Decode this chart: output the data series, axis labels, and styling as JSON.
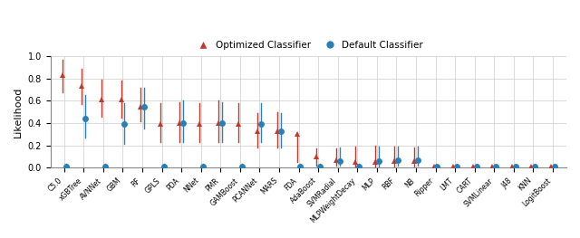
{
  "classifiers": [
    "C5.0",
    "xGBTree",
    "AVNNet",
    "GBM",
    "RF",
    "GPLS",
    "PDA",
    "NNet",
    "PMR",
    "GAMBoost",
    "PCANNet",
    "MARS",
    "FDA",
    "AdaBoost",
    "SVMRadial",
    "MLPWeightDecay",
    "MLP",
    "RBF",
    "NB",
    "Ripper",
    "LMT",
    "CART",
    "SVMLinear",
    "J48",
    "KNN",
    "LogitBoost"
  ],
  "red_mean": [
    0.83,
    0.73,
    0.61,
    0.61,
    0.55,
    0.39,
    0.4,
    0.39,
    0.4,
    0.39,
    0.33,
    0.33,
    0.3,
    0.1,
    0.07,
    0.05,
    0.05,
    0.06,
    0.06,
    0.01,
    0.01,
    0.01,
    0.01,
    0.01,
    0.01,
    0.01
  ],
  "red_low": [
    0.68,
    0.57,
    0.46,
    0.45,
    0.42,
    0.23,
    0.23,
    0.23,
    0.23,
    0.23,
    0.18,
    0.18,
    0.05,
    0.02,
    0.02,
    0.01,
    0.01,
    0.01,
    0.01,
    0.0,
    0.0,
    0.0,
    0.0,
    0.0,
    0.0,
    0.0
  ],
  "red_high": [
    0.97,
    0.89,
    0.79,
    0.78,
    0.72,
    0.58,
    0.59,
    0.58,
    0.6,
    0.58,
    0.49,
    0.5,
    0.28,
    0.17,
    0.17,
    0.19,
    0.2,
    0.19,
    0.18,
    0.02,
    0.02,
    0.02,
    0.02,
    0.02,
    0.02,
    0.02
  ],
  "blue_mean": [
    0.01,
    0.44,
    0.01,
    0.39,
    0.55,
    0.01,
    0.4,
    0.01,
    0.4,
    0.01,
    0.39,
    0.33,
    0.01,
    0.01,
    0.06,
    0.01,
    0.06,
    0.07,
    0.07,
    0.01,
    0.01,
    0.01,
    0.01,
    0.01,
    0.01,
    0.01
  ],
  "blue_low": [
    0.0,
    0.27,
    0.0,
    0.21,
    0.35,
    0.0,
    0.23,
    0.0,
    0.23,
    0.0,
    0.23,
    0.18,
    0.0,
    0.0,
    0.02,
    0.0,
    0.01,
    0.02,
    0.02,
    0.0,
    0.0,
    0.0,
    0.0,
    0.0,
    0.0,
    0.0
  ],
  "blue_high": [
    0.03,
    0.65,
    0.03,
    0.58,
    0.72,
    0.03,
    0.6,
    0.03,
    0.59,
    0.03,
    0.58,
    0.49,
    0.03,
    0.03,
    0.18,
    0.03,
    0.19,
    0.19,
    0.19,
    0.02,
    0.02,
    0.02,
    0.02,
    0.02,
    0.02,
    0.02
  ],
  "red_color": "#C0392B",
  "blue_color": "#2980B9",
  "ylabel": "Likelihood",
  "ylim": [
    0.0,
    1.0
  ],
  "bg_color": "#FFFFFF",
  "grid_color": "#CCCCCC"
}
